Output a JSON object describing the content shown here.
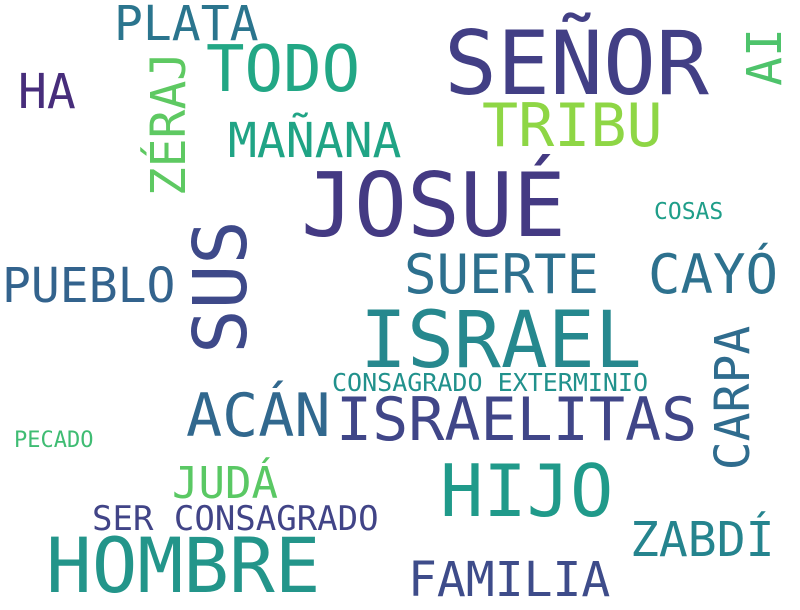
{
  "words": [
    {
      "text": "SEÑOR",
      "color": "#423f85"
    },
    {
      "text": "JOSUÉ",
      "color": "#443a83"
    },
    {
      "text": "ISRAEL",
      "color": "#26888e"
    },
    {
      "text": "HOMBRE",
      "color": "#23958a"
    },
    {
      "text": "HIJO",
      "color": "#209a8a"
    },
    {
      "text": "SUS",
      "color": "#3e4989"
    },
    {
      "text": "ISRAELITAS",
      "color": "#404688"
    },
    {
      "text": "TODO",
      "color": "#22a785"
    },
    {
      "text": "ACÁN",
      "color": "#31688e"
    },
    {
      "text": "TRIBU",
      "color": "#8ed645"
    },
    {
      "text": "SUERTE",
      "color": "#2d708e"
    },
    {
      "text": "CAYÓ",
      "color": "#2d718e"
    },
    {
      "text": "PUEBLO",
      "color": "#33638d"
    },
    {
      "text": "MAÑANA",
      "color": "#20a485"
    },
    {
      "text": "FAMILIA",
      "color": "#3e4c8a"
    },
    {
      "text": "ZABDÍ",
      "color": "#25848e"
    },
    {
      "text": "CARPA",
      "color": "#2f6c8e"
    },
    {
      "text": "PLATA",
      "color": "#2b758e"
    },
    {
      "text": "ZÉRAJ",
      "color": "#5ec962"
    },
    {
      "text": "AI",
      "color": "#4ec36b"
    },
    {
      "text": "HA",
      "color": "#472d7b"
    },
    {
      "text": "JUDÁ",
      "color": "#5ac864"
    },
    {
      "text": "SER CONSAGRADO",
      "color": "#414487"
    },
    {
      "text": "CONSAGRADO EXTERMINIO",
      "color": "#21918c"
    },
    {
      "text": "COSAS",
      "color": "#1f9e89"
    },
    {
      "text": "PECADO",
      "color": "#3fbc73"
    }
  ]
}
